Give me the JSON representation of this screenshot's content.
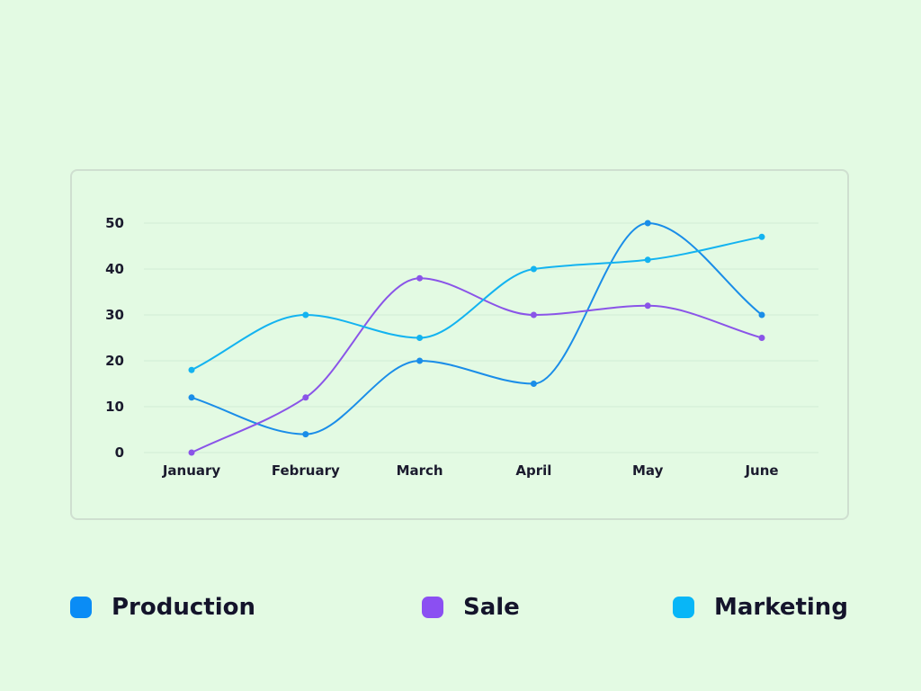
{
  "chart_data": {
    "type": "line",
    "categories": [
      "January",
      "February",
      "March",
      "April",
      "May",
      "June"
    ],
    "yticks": [
      0,
      10,
      20,
      30,
      40,
      50
    ],
    "ylim": [
      0,
      50
    ],
    "grid": true,
    "smooth": true,
    "legend_position": "bottom",
    "series": [
      {
        "name": "Production",
        "color": "#1a8de8",
        "values": [
          12,
          4,
          20,
          15,
          50,
          30
        ]
      },
      {
        "name": "Sale",
        "color": "#8a54e8",
        "values": [
          0,
          12,
          38,
          30,
          32,
          25
        ]
      },
      {
        "name": "Marketing",
        "color": "#13b3f0",
        "values": [
          18,
          30,
          25,
          40,
          42,
          47
        ]
      }
    ]
  },
  "legend": [
    {
      "label": "Production",
      "color": "#0a8cf5"
    },
    {
      "label": "Sale",
      "color": "#8b4ff2"
    },
    {
      "label": "Marketing",
      "color": "#08b6f7"
    }
  ]
}
